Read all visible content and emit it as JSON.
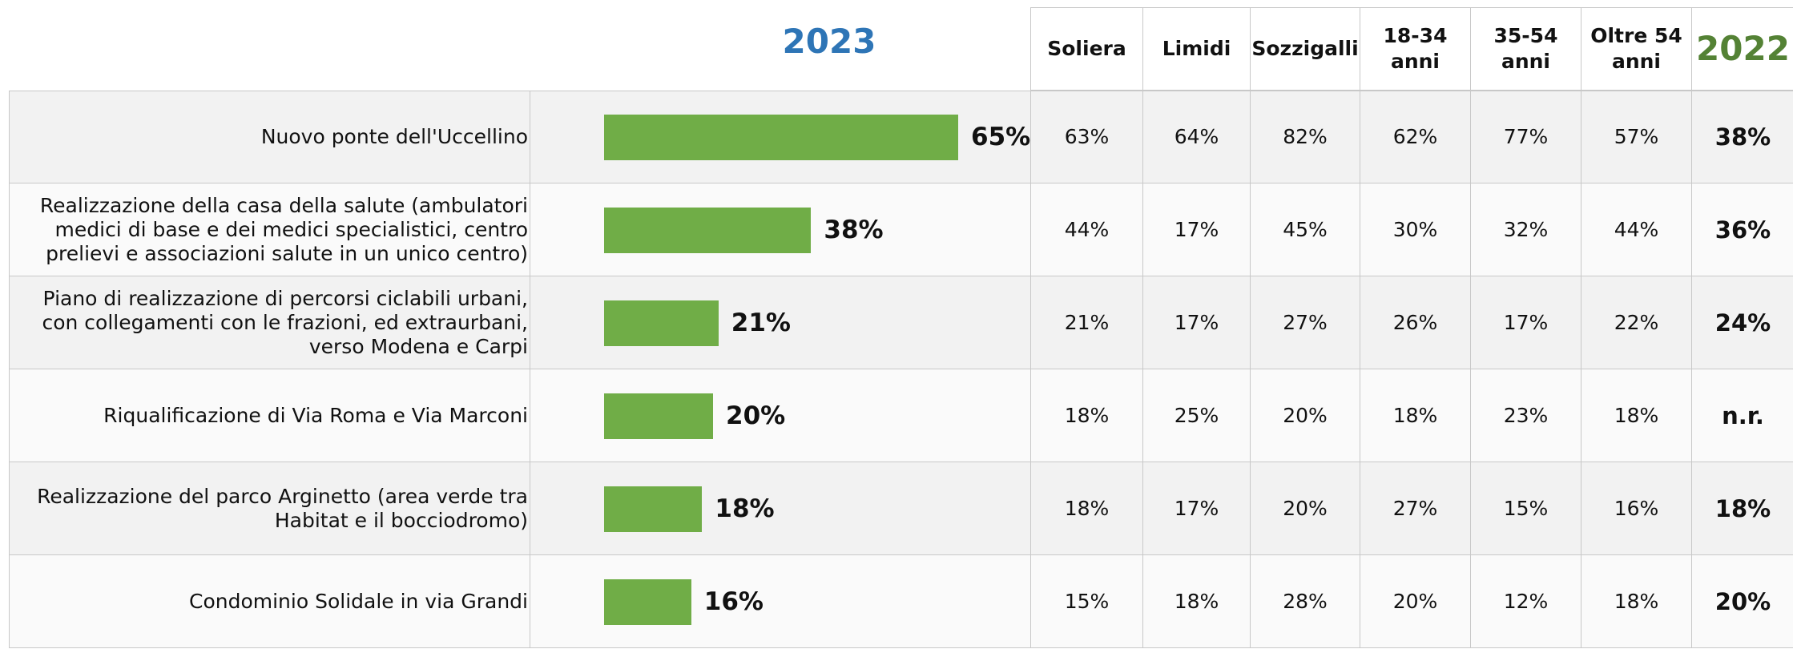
{
  "chart_data": {
    "type": "bar",
    "title": "2023",
    "categories": [
      "Nuovo ponte dell'Uccellino",
      "Realizzazione della casa della salute (ambulatori medici di base e dei medici specialistici, centro prelievi e associazioni salute in un unico centro)",
      "Piano di realizzazione di percorsi ciclabili urbani, con collegamenti con le frazioni, ed extraurbani, verso Modena e Carpi",
      "Riqualificazione di Via Roma e Via Marconi",
      "Realizzazione del parco Arginetto (area verde tra Habitat e il bocciodromo)",
      "Condominio Solidale in via Grandi"
    ],
    "values": [
      65,
      38,
      21,
      20,
      18,
      16
    ],
    "value_labels": [
      "65%",
      "38%",
      "21%",
      "20%",
      "18%",
      "16%"
    ],
    "color": "#70ad47"
  },
  "table": {
    "columns": [
      "Soliera",
      "Limidi",
      "Sozzigalli",
      "18-34 anni",
      "35-54 anni",
      "Oltre 54 anni"
    ],
    "rows": [
      [
        "63%",
        "64%",
        "82%",
        "62%",
        "77%",
        "57%"
      ],
      [
        "44%",
        "17%",
        "45%",
        "30%",
        "32%",
        "44%"
      ],
      [
        "21%",
        "17%",
        "27%",
        "26%",
        "17%",
        "22%"
      ],
      [
        "18%",
        "25%",
        "20%",
        "18%",
        "23%",
        "18%"
      ],
      [
        "18%",
        "17%",
        "20%",
        "27%",
        "15%",
        "16%"
      ],
      [
        "15%",
        "18%",
        "28%",
        "20%",
        "12%",
        "18%"
      ]
    ]
  },
  "previous": {
    "title": "2022",
    "values": [
      "38%",
      "36%",
      "24%",
      "n.r.",
      "18%",
      "20%"
    ]
  }
}
